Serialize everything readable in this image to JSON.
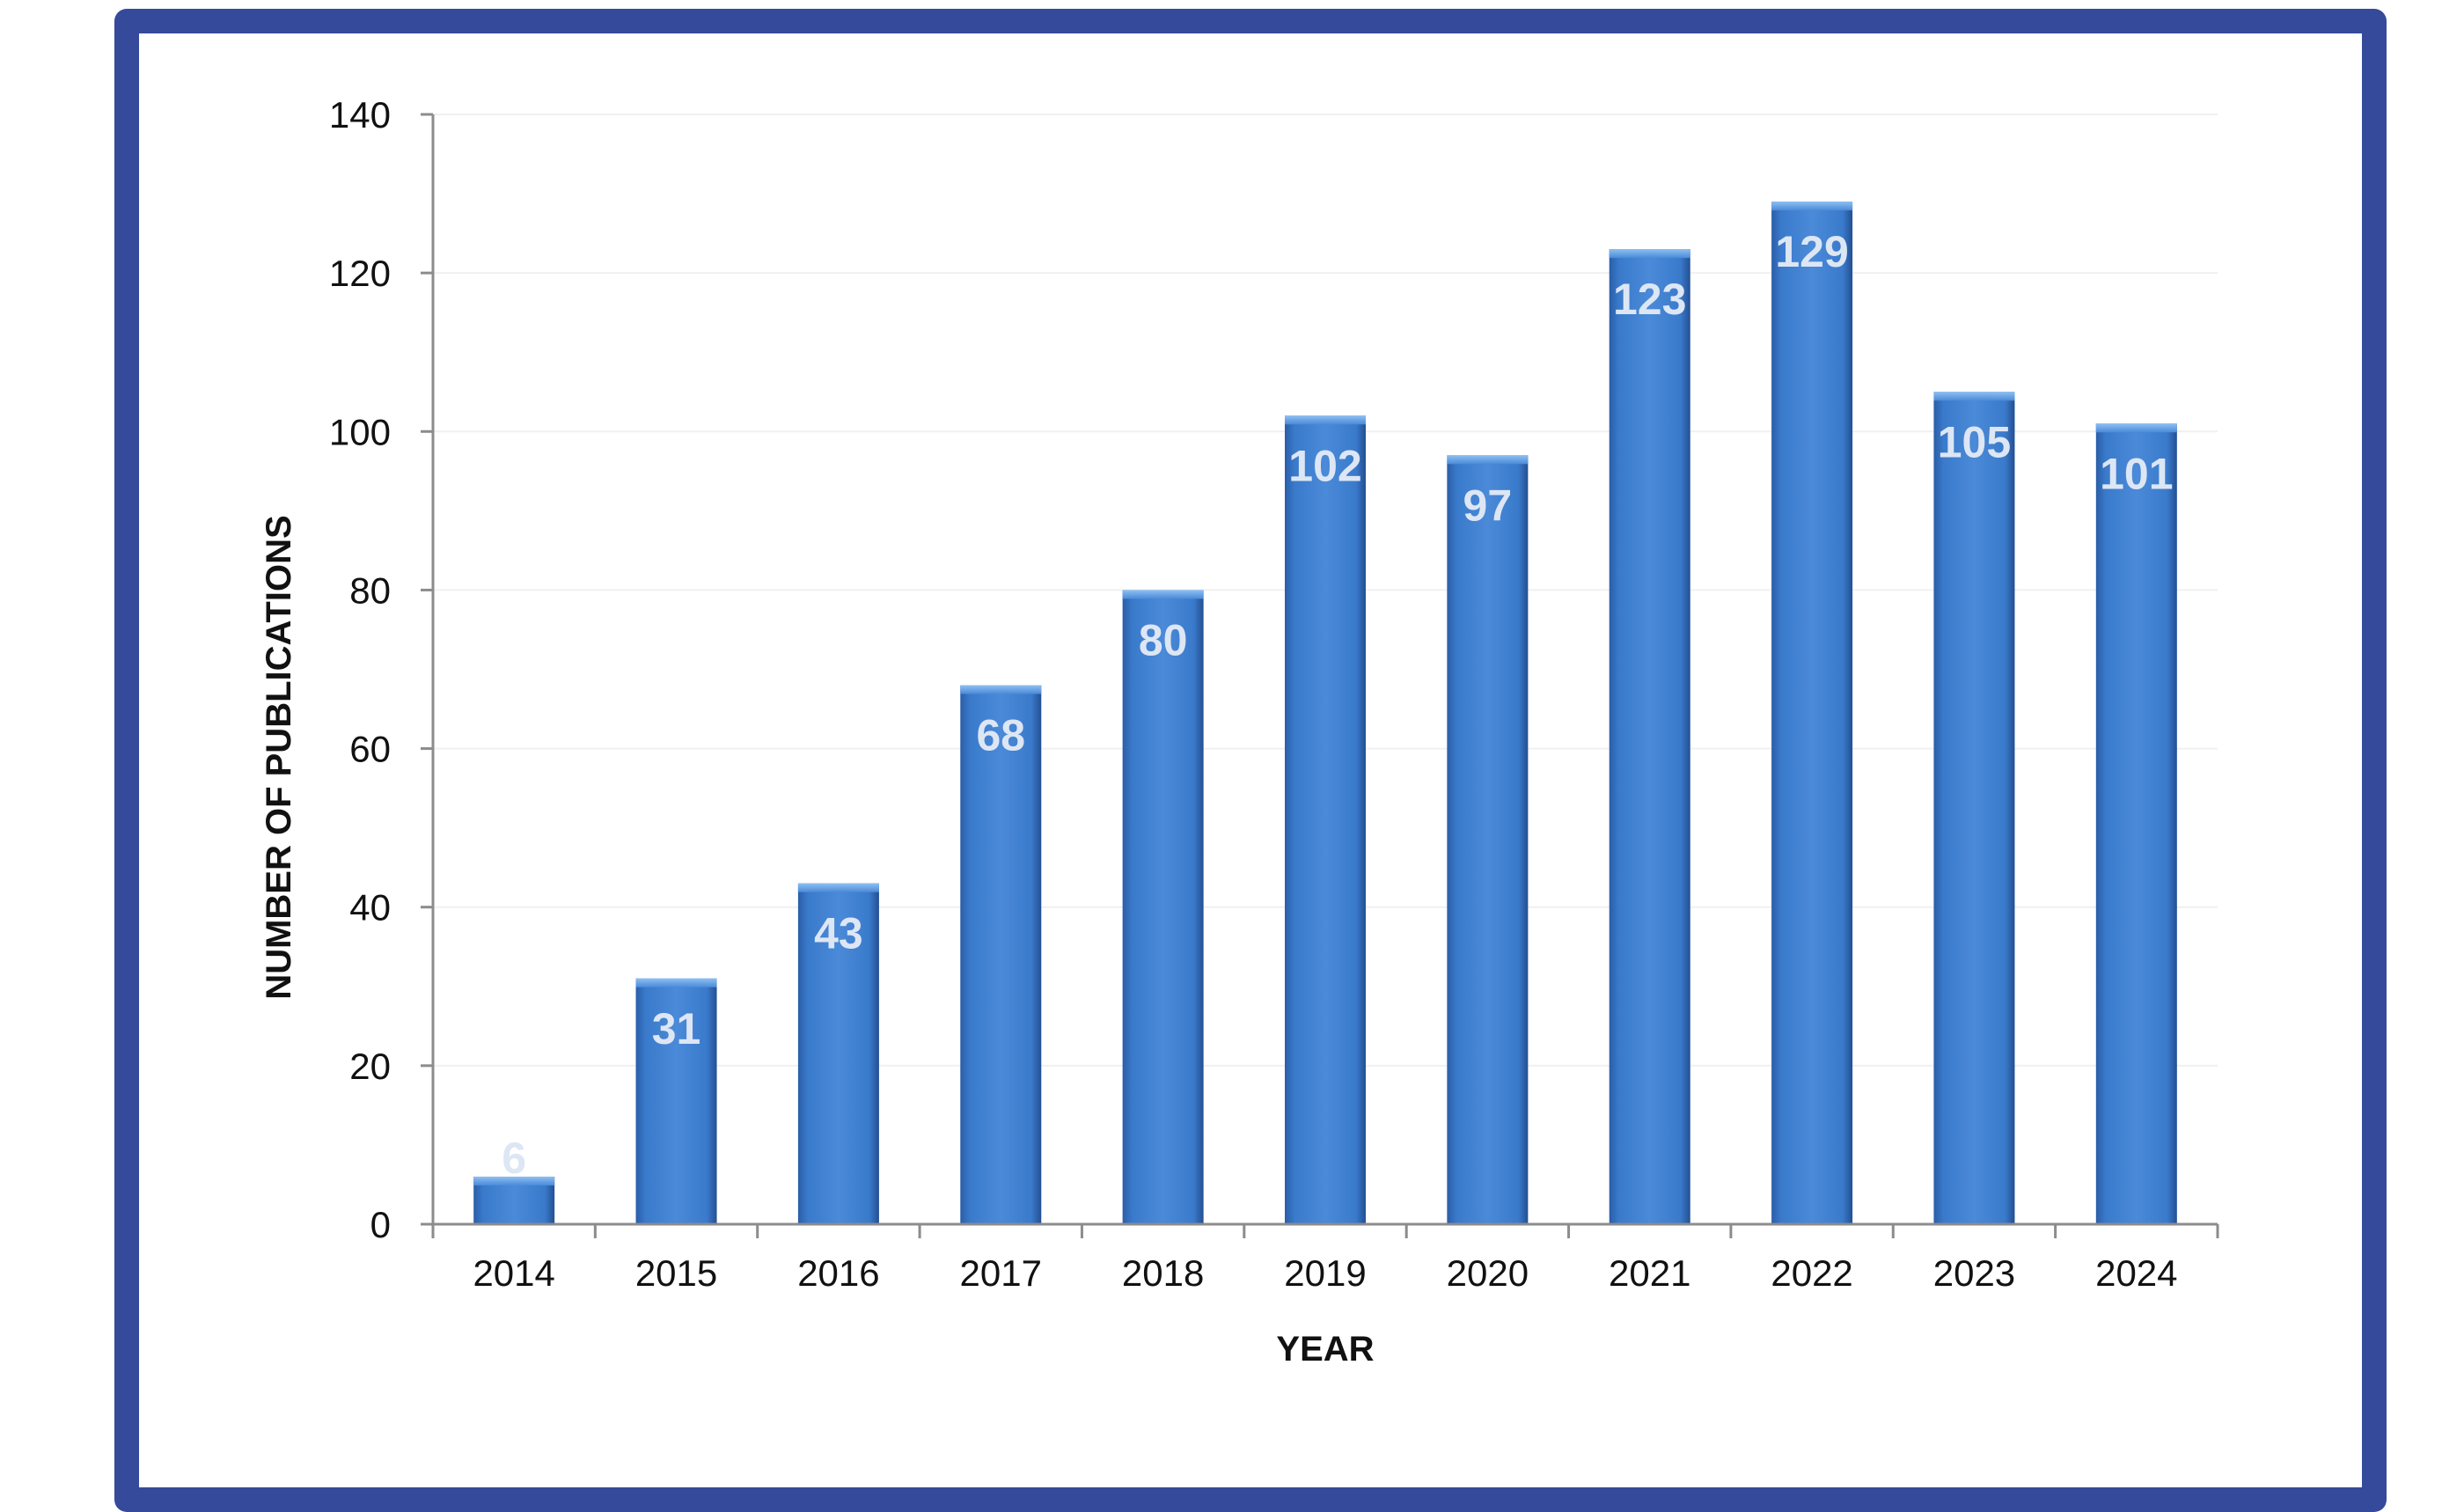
{
  "chart_data": {
    "type": "bar",
    "categories": [
      "2014",
      "2015",
      "2016",
      "2017",
      "2018",
      "2019",
      "2020",
      "2021",
      "2022",
      "2023",
      "2024"
    ],
    "values": [
      6,
      31,
      43,
      68,
      80,
      102,
      97,
      123,
      129,
      105,
      101
    ],
    "data_labels": [
      "6",
      "31",
      "43",
      "68",
      "80",
      "102",
      "97",
      "123",
      "129",
      "105",
      "101"
    ],
    "title": "",
    "xlabel": "YEAR",
    "ylabel": "NUMBER OF PUBLICATIONS",
    "ylim": [
      0,
      140
    ],
    "yticks": [
      "0",
      "20",
      "40",
      "60",
      "80",
      "100",
      "120",
      "140"
    ],
    "grid": true,
    "legend": "none",
    "colors": {
      "bar": "#3a7acb",
      "bar_dark": "#2a5ea8",
      "bar_light": "#5a9ae0",
      "frame": "#354a9a",
      "data_label": "#dde6f4",
      "data_label_small": "#8a8a8a",
      "axis": "#8c8c8c",
      "grid": "#f0f0f0"
    }
  }
}
